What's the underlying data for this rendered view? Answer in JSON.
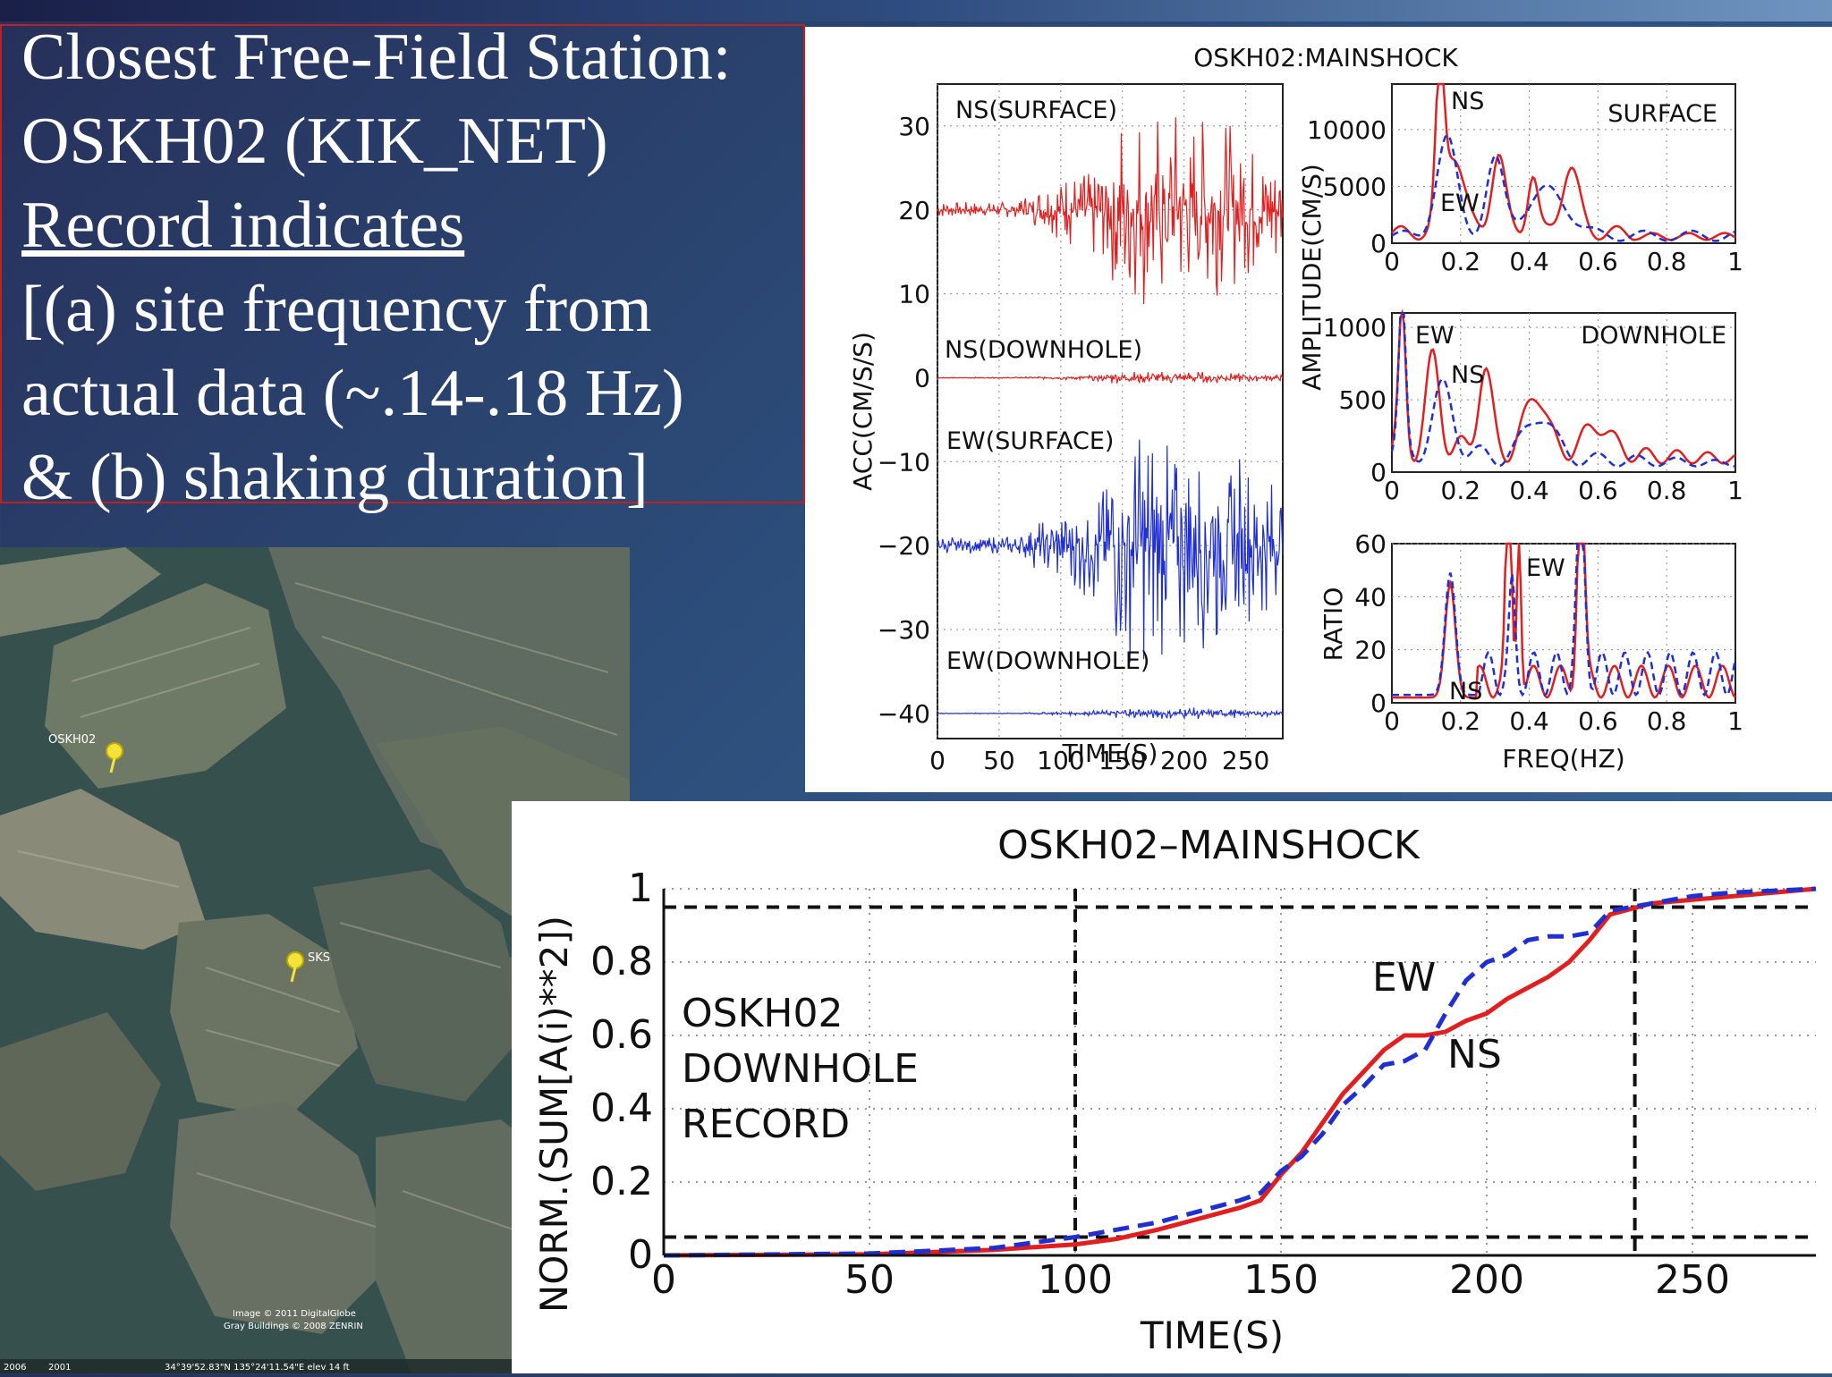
{
  "slide": {
    "lines": [
      "Closest Free-Field Station:",
      "OSKH02 (KIK_NET)",
      "Record indicates",
      "[(a) site frequency from",
      "actual data (~.14-.18 Hz)",
      "& (b) shaking duration]"
    ]
  },
  "map": {
    "station_label": "OSKH02",
    "second_label": "SKS",
    "credit_line1": "Image © 2011 DigitalGlobe",
    "credit_line2": "Gray Buildings © 2008 ZENRIN",
    "status_coords": "34°39'52.83\"N 135°24'11.54\"E elev   14 ft",
    "status_year1": "2006",
    "status_year2": "2001"
  },
  "colors": {
    "ns": "#e02020",
    "ew": "#2030d0"
  },
  "figure1": {
    "title": "OSKH02:MAINSHOCK",
    "accel": {
      "ylabel": "ACC(CM/S/S)",
      "xlabel": "TIME(S)",
      "yticks": [
        "30",
        "20",
        "10",
        "0",
        "−10",
        "−20",
        "−30",
        "−40"
      ],
      "xticks": [
        "0",
        "50",
        "100",
        "150",
        "200",
        "250"
      ],
      "labels": [
        "NS(SURFACE)",
        "NS(DOWNHOLE)",
        "EW(SURFACE)",
        "EW(DOWNHOLE)"
      ]
    },
    "spectra": {
      "ylabel_amp": "AMPLITUDE(CM/S)",
      "ylabel_ratio": "RATIO",
      "xlabel": "FREQ(HZ)",
      "xticks": [
        "0",
        "0.2",
        "0.4",
        "0.6",
        "0.8",
        "1"
      ],
      "surface": {
        "tag": "SURFACE",
        "ns": "NS",
        "ew": "EW",
        "yticks": [
          "10000",
          "5000",
          "0"
        ]
      },
      "downhole": {
        "tag": "DOWNHOLE",
        "ew": "EW",
        "ns": "NS",
        "yticks": [
          "1000",
          "500",
          "0"
        ]
      },
      "ratio": {
        "ew": "EW",
        "ns": "NS",
        "yticks": [
          "60",
          "40",
          "20",
          "0"
        ]
      }
    }
  },
  "chart_data": [
    {
      "type": "line",
      "title": "OSKH02–MAINSHOCK",
      "xlabel": "TIME(S)",
      "ylabel": "NORM.(SUM[A(i)**2])",
      "xlim": [
        0,
        280
      ],
      "ylim": [
        0,
        1
      ],
      "xticks": [
        "0",
        "50",
        "100",
        "150",
        "200",
        "250"
      ],
      "yticks": [
        "0",
        "0.2",
        "0.4",
        "0.6",
        "0.8",
        "1"
      ],
      "grid": true,
      "annotation": [
        "OSKH02",
        "DOWNHOLE",
        "RECORD"
      ],
      "series": [
        {
          "name": "NS",
          "style": "solid",
          "x": [
            0,
            50,
            80,
            100,
            110,
            120,
            130,
            140,
            145,
            150,
            155,
            160,
            165,
            170,
            175,
            180,
            185,
            190,
            195,
            200,
            205,
            210,
            215,
            220,
            225,
            230,
            240,
            250,
            260,
            270,
            280
          ],
          "y": [
            0,
            0.003,
            0.015,
            0.03,
            0.045,
            0.07,
            0.1,
            0.13,
            0.15,
            0.22,
            0.28,
            0.36,
            0.44,
            0.5,
            0.56,
            0.6,
            0.6,
            0.61,
            0.64,
            0.66,
            0.7,
            0.73,
            0.76,
            0.8,
            0.86,
            0.93,
            0.96,
            0.97,
            0.98,
            0.99,
            1.0
          ]
        },
        {
          "name": "EW",
          "style": "dashed",
          "x": [
            0,
            50,
            80,
            100,
            110,
            120,
            130,
            140,
            145,
            150,
            155,
            160,
            165,
            170,
            175,
            180,
            185,
            190,
            195,
            200,
            205,
            210,
            215,
            220,
            225,
            230,
            240,
            250,
            260,
            270,
            280
          ],
          "y": [
            0,
            0.005,
            0.02,
            0.05,
            0.07,
            0.09,
            0.12,
            0.15,
            0.17,
            0.23,
            0.27,
            0.33,
            0.41,
            0.46,
            0.52,
            0.53,
            0.56,
            0.66,
            0.75,
            0.8,
            0.82,
            0.86,
            0.87,
            0.87,
            0.88,
            0.94,
            0.96,
            0.98,
            0.99,
            0.995,
            1.0
          ]
        }
      ],
      "reference_lines": {
        "y": [
          0.05,
          0.95
        ],
        "x": [
          100,
          236
        ]
      }
    }
  ]
}
